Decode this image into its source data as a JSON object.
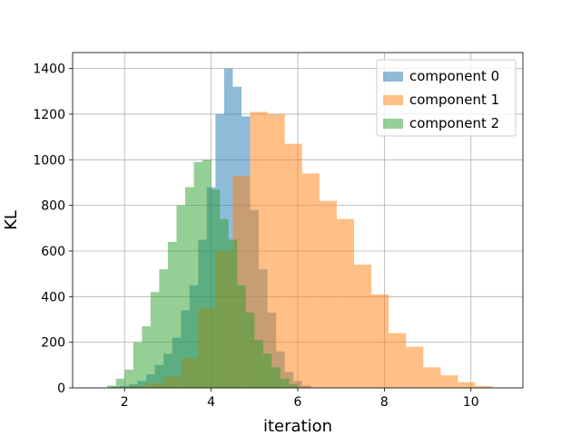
{
  "chart_data": {
    "type": "histogram",
    "title": "",
    "xlabel": "iteration",
    "ylabel": "KL",
    "xlim": [
      0.8,
      11.2
    ],
    "ylim": [
      0,
      1470
    ],
    "xticks": [
      2,
      4,
      6,
      8,
      10
    ],
    "yticks": [
      0,
      200,
      400,
      600,
      800,
      1000,
      1200,
      1400
    ],
    "grid": true,
    "legend_position": "top-right",
    "series": [
      {
        "name": "component 0",
        "color": "#1f77b4",
        "alpha": 0.5,
        "bin_edges": [
          1.5,
          1.7,
          1.9,
          2.1,
          2.3,
          2.5,
          2.7,
          2.9,
          3.1,
          3.3,
          3.5,
          3.7,
          3.9,
          4.1,
          4.3,
          4.5,
          4.7,
          4.9,
          5.1,
          5.3,
          5.5,
          5.7,
          5.9,
          6.1,
          6.3
        ],
        "counts": [
          2,
          5,
          8,
          15,
          30,
          60,
          100,
          150,
          220,
          340,
          450,
          650,
          880,
          1200,
          1400,
          1320,
          1190,
          780,
          520,
          330,
          160,
          70,
          30,
          10
        ]
      },
      {
        "name": "component 1",
        "color": "#ff7f0e",
        "alpha": 0.5,
        "bin_edges": [
          1.7,
          2.1,
          2.5,
          2.9,
          3.3,
          3.7,
          4.1,
          4.5,
          4.9,
          5.3,
          5.7,
          6.1,
          6.5,
          6.9,
          7.3,
          7.7,
          8.1,
          8.5,
          8.9,
          9.3,
          9.7,
          10.1,
          10.5
        ],
        "counts": [
          2,
          8,
          20,
          50,
          130,
          350,
          600,
          930,
          1210,
          1200,
          1070,
          940,
          820,
          740,
          540,
          410,
          240,
          180,
          90,
          55,
          25,
          8
        ]
      },
      {
        "name": "component 2",
        "color": "#2ca02c",
        "alpha": 0.5,
        "bin_edges": [
          1.6,
          1.8,
          2.0,
          2.2,
          2.4,
          2.6,
          2.8,
          3.0,
          3.2,
          3.4,
          3.6,
          3.8,
          4.0,
          4.2,
          4.4,
          4.6,
          4.8,
          5.0,
          5.2,
          5.4,
          5.6,
          5.8,
          6.0
        ],
        "counts": [
          10,
          40,
          80,
          200,
          270,
          420,
          520,
          640,
          800,
          880,
          990,
          1000,
          870,
          740,
          650,
          450,
          330,
          210,
          150,
          90,
          40,
          15
        ]
      }
    ]
  }
}
